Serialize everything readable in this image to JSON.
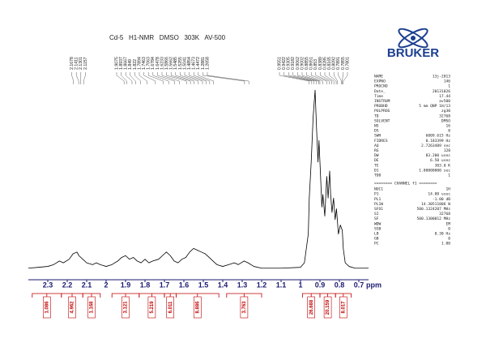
{
  "logo": "BRUKER",
  "chart_data": {
    "type": "nmr",
    "title": "Cd-5   H1-NMR   DMSO   303K   AV-500",
    "x_unit": "ppm",
    "xlim": [
      2.4,
      0.65
    ],
    "ylim": [
      0,
      105
    ],
    "xticks": [
      2.3,
      2.2,
      2.1,
      2.0,
      1.9,
      1.8,
      1.7,
      1.6,
      1.5,
      1.4,
      1.3,
      1.2,
      1.1,
      1.0,
      0.9,
      0.8,
      0.7
    ],
    "color": "#000000",
    "x": [
      2.4,
      2.35,
      2.3,
      2.27,
      2.24,
      2.22,
      2.19,
      2.17,
      2.15,
      2.14,
      2.12,
      2.1,
      2.07,
      2.05,
      2.03,
      2.0,
      1.97,
      1.94,
      1.92,
      1.9,
      1.88,
      1.86,
      1.84,
      1.82,
      1.8,
      1.78,
      1.76,
      1.73,
      1.71,
      1.69,
      1.67,
      1.65,
      1.63,
      1.61,
      1.59,
      1.57,
      1.55,
      1.53,
      1.51,
      1.49,
      1.47,
      1.45,
      1.43,
      1.4,
      1.37,
      1.34,
      1.32,
      1.29,
      1.27,
      1.24,
      1.2,
      1.1,
      1.0,
      0.98,
      0.96,
      0.955,
      0.945,
      0.935,
      0.925,
      0.918,
      0.91,
      0.905,
      0.898,
      0.89,
      0.885,
      0.875,
      0.865,
      0.858,
      0.85,
      0.845,
      0.838,
      0.83,
      0.822,
      0.815,
      0.805,
      0.795,
      0.785,
      0.78,
      0.77,
      0.75,
      0.72,
      0.65
    ],
    "values": [
      1,
      1.5,
      2,
      3,
      5,
      4,
      6,
      9,
      10,
      8,
      6,
      4,
      3,
      4,
      3,
      2,
      3,
      5,
      7,
      8,
      6,
      7,
      5,
      4,
      6,
      4,
      5,
      6,
      8,
      10,
      8,
      5,
      4,
      6,
      7,
      10,
      12,
      11,
      10,
      9,
      7,
      5,
      3,
      2,
      3,
      4,
      3,
      5,
      4,
      2,
      1,
      1,
      1.5,
      4,
      20,
      40,
      60,
      85,
      100,
      80,
      60,
      72,
      55,
      35,
      42,
      30,
      52,
      40,
      55,
      42,
      32,
      40,
      28,
      34,
      20,
      25,
      22,
      12,
      4,
      2,
      1,
      1
    ],
    "peak_labels": [
      [
        2.1678,
        2.1411,
        2.1301,
        2.1157
      ],
      [
        1.9075,
        1.8937,
        1.8667,
        1.849,
        1.822,
        1.7894,
        1.7463,
        1.7063,
        1.6784,
        1.6478,
        1.6233,
        1.5866,
        1.5662,
        1.5485,
        1.5255,
        1.5041,
        1.4854,
        1.4673,
        1.4472,
        1.2881,
        1.2658
      ],
      [
        0.9551,
        0.9422,
        0.9305,
        0.9182,
        0.9062,
        0.9002,
        0.8855,
        0.8651,
        0.853,
        0.8389,
        0.8285,
        0.8165,
        0.8092,
        0.7891,
        0.7855,
        0.7801
      ]
    ],
    "integrals": {
      "color": "#c00000",
      "values": [
        1.086,
        4.962,
        1.168,
        3.121,
        5.219,
        6.011,
        8.886,
        3.763,
        26.688,
        20.159,
        8.017
      ],
      "ranges": [
        [
          2.38,
          2.23
        ],
        [
          2.23,
          2.12
        ],
        [
          2.12,
          2.03
        ],
        [
          1.97,
          1.83
        ],
        [
          1.83,
          1.7
        ],
        [
          1.7,
          1.64
        ],
        [
          1.64,
          1.42
        ],
        [
          1.38,
          1.2
        ],
        [
          0.99,
          0.9
        ],
        [
          0.9,
          0.82
        ],
        [
          0.82,
          0.74
        ]
      ]
    }
  },
  "parameters": {
    "acquisition": [
      [
        "NAME",
        "13j-2013"
      ],
      [
        "EXPNO",
        "146"
      ],
      [
        "PROCNO",
        "1"
      ],
      [
        "Date_",
        "20131026"
      ],
      [
        "Time",
        "17.44"
      ],
      [
        "INSTRUM",
        "av500"
      ],
      [
        "PROBHD",
        "5 mm QNP 1H/13"
      ],
      [
        "PULPROG",
        "zg30"
      ],
      [
        "TD",
        "32768"
      ],
      [
        "SOLVENT",
        "DMSO"
      ],
      [
        "NS",
        "16"
      ],
      [
        "DS",
        "0"
      ],
      [
        "SWH",
        "6009.615 Hz"
      ],
      [
        "FIDRES",
        "0.183399 Hz"
      ],
      [
        "AQ",
        "2.7263409 sec"
      ],
      [
        "RG",
        "128"
      ],
      [
        "DW",
        "83.200 usec"
      ],
      [
        "DE",
        "6.50 usec"
      ],
      [
        "TE",
        "303.0 K"
      ],
      [
        "D1",
        "1.00000000 sec"
      ],
      [
        "TD0",
        "1"
      ]
    ],
    "channel_header": "======== CHANNEL f1 ========",
    "channel": [
      [
        "NUC1",
        "1H"
      ],
      [
        "P1",
        "14.00 usec"
      ],
      [
        "PL1",
        "-1.00 dB"
      ],
      [
        "PL1W",
        "14.30511806 W"
      ],
      [
        "SFO1",
        "500.1324207 MHz"
      ],
      [
        "SI",
        "32768"
      ],
      [
        "SF",
        "500.1300012 MHz"
      ],
      [
        "WDW",
        "EM"
      ],
      [
        "SSB",
        "0"
      ],
      [
        "LB",
        "0.30 Hz"
      ],
      [
        "GB",
        "0"
      ],
      [
        "PC",
        "1.00"
      ]
    ]
  }
}
